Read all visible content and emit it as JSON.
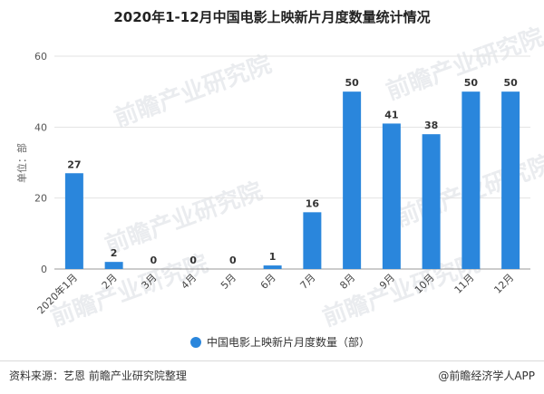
{
  "chart_data": {
    "type": "bar",
    "title": "2020年1-12月中国电影上映新片月度数量统计情况",
    "ylabel": "单位：部",
    "xlabel": "",
    "categories": [
      "2020年1月",
      "2月",
      "3月",
      "4月",
      "5月",
      "6月",
      "7月",
      "8月",
      "9月",
      "10月",
      "11月",
      "12月"
    ],
    "series": [
      {
        "name": "中国电影上映新片月度数量（部）",
        "values": [
          27,
          2,
          0,
          0,
          0,
          1,
          16,
          50,
          41,
          38,
          50,
          50
        ]
      }
    ],
    "ylim": [
      0,
      60
    ],
    "yticks": [
      0,
      20,
      40,
      60
    ],
    "grid": true,
    "legend": "bottom-center",
    "bar_color": "#2a86dc"
  },
  "footer": {
    "source": "资料来源：艺恩 前瞻产业研究院整理",
    "brand": "@前瞻经济学人APP"
  },
  "watermark": "前瞻产业研究院"
}
